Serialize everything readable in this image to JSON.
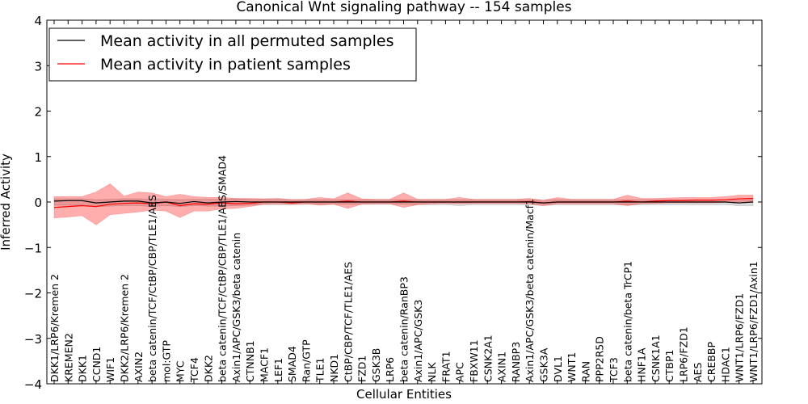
{
  "chart_data": {
    "type": "line",
    "title": "Canonical Wnt signaling pathway -- 154 samples",
    "xlabel": "Cellular Entities",
    "ylabel": "Inferred Activity",
    "ylim": [
      -4,
      4
    ],
    "yticks": [
      -4,
      -3,
      -2,
      -1,
      0,
      1,
      2,
      3,
      4
    ],
    "ytick_labels": [
      "−4",
      "−3",
      "−2",
      "−1",
      "0",
      "1",
      "2",
      "3",
      "4"
    ],
    "legend_position": "top-left",
    "categories": [
      "DKK1/LRP6/Kremen 2",
      "KREMEN2",
      "DKK1",
      "CCND1",
      "WIF1",
      "DKK2/LRP6/Kremen 2",
      "AXIN2",
      "beta catenin/TCF/CtBP/CBP/TLE1/AES",
      "mol:GTP",
      "MYC",
      "TCF4",
      "DKK2",
      "beta catenin/TCF/CtBP/CBP/TLE1/AES/SMAD4",
      "Axin1/APC/GSK3/beta catenin",
      "CTNNB1",
      "MACF1",
      "LEF1",
      "SMAD4",
      "Ran/GTP",
      "TLE1",
      "NKD1",
      "CtBP/CBP/TCF/TLE1/AES",
      "FZD1",
      "GSK3B",
      "LRP6",
      "beta catenin/RanBP3",
      "Axin1/APC/GSK3",
      "NLK",
      "FRAT1",
      "APC",
      "FBXW11",
      "CSNK2A1",
      "AXIN1",
      "RANBP3",
      "Axin1/APC/GSK3/beta catenin/Macf1",
      "GSK3A",
      "DVL1",
      "WNT1",
      "RAN",
      "PPP2R5D",
      "TCF3",
      "beta catenin/beta TrCP1",
      "HNF1A",
      "CSNK1A1",
      "CTBP1",
      "LRP6/FZD1",
      "AES",
      "CREBBP",
      "HDAC1",
      "WNT1/LRP6/FZD1",
      "WNT1/LRP6/FZD1/Axin1"
    ],
    "series": [
      {
        "name": "Mean activity in all permuted samples",
        "color": "#000000",
        "values": [
          0.02,
          0.03,
          0.03,
          -0.02,
          0.0,
          0.02,
          0.02,
          -0.02,
          0.0,
          -0.03,
          0.01,
          -0.02,
          0.0,
          0.01,
          0.0,
          0.0,
          0.0,
          0.0,
          0.0,
          0.0,
          0.0,
          0.0,
          0.0,
          0.0,
          0.0,
          0.0,
          0.0,
          0.0,
          0.0,
          0.0,
          0.0,
          0.0,
          0.0,
          0.0,
          0.0,
          -0.02,
          0.0,
          0.0,
          0.0,
          0.0,
          0.0,
          0.0,
          0.0,
          0.0,
          0.0,
          0.0,
          0.0,
          0.0,
          0.0,
          -0.02,
          0.0
        ],
        "band_lower": [
          -0.07,
          -0.07,
          -0.07,
          -0.1,
          -0.09,
          -0.08,
          -0.08,
          -0.1,
          -0.08,
          -0.1,
          -0.08,
          -0.09,
          -0.09,
          -0.08,
          -0.07,
          -0.06,
          -0.06,
          -0.06,
          -0.05,
          -0.05,
          -0.05,
          -0.05,
          -0.05,
          -0.05,
          -0.05,
          -0.05,
          -0.06,
          -0.06,
          -0.06,
          -0.08,
          -0.06,
          -0.06,
          -0.06,
          -0.06,
          -0.06,
          -0.08,
          -0.06,
          -0.06,
          -0.06,
          -0.06,
          -0.06,
          -0.07,
          -0.06,
          -0.06,
          -0.06,
          -0.06,
          -0.06,
          -0.06,
          -0.06,
          -0.08,
          -0.08
        ],
        "band_upper": [
          0.07,
          0.07,
          0.07,
          0.05,
          0.06,
          0.07,
          0.07,
          0.06,
          0.06,
          0.05,
          0.06,
          0.06,
          0.06,
          0.07,
          0.06,
          0.06,
          0.06,
          0.06,
          0.05,
          0.05,
          0.05,
          0.05,
          0.05,
          0.05,
          0.05,
          0.05,
          0.05,
          0.05,
          0.05,
          0.05,
          0.05,
          0.05,
          0.05,
          0.05,
          0.05,
          0.04,
          0.05,
          0.05,
          0.05,
          0.05,
          0.05,
          0.05,
          0.05,
          0.05,
          0.05,
          0.05,
          0.05,
          0.05,
          0.05,
          0.04,
          0.05
        ]
      },
      {
        "name": "Mean activity in patient samples",
        "color": "#ff0000",
        "values": [
          -0.12,
          -0.1,
          -0.08,
          -0.1,
          -0.05,
          -0.03,
          -0.02,
          -0.04,
          0.0,
          -0.08,
          -0.04,
          -0.05,
          -0.02,
          -0.04,
          -0.03,
          0.0,
          0.0,
          -0.02,
          0.0,
          0.0,
          0.0,
          0.02,
          0.0,
          0.0,
          0.0,
          0.02,
          0.0,
          0.0,
          0.0,
          0.0,
          0.0,
          0.0,
          0.0,
          0.0,
          0.01,
          -0.02,
          0.0,
          0.0,
          0.0,
          0.0,
          0.0,
          0.02,
          0.0,
          0.02,
          0.03,
          0.03,
          0.04,
          0.04,
          0.05,
          0.07,
          0.08
        ],
        "band_lower": [
          -0.35,
          -0.33,
          -0.3,
          -0.5,
          -0.28,
          -0.25,
          -0.22,
          -0.18,
          -0.2,
          -0.34,
          -0.2,
          -0.2,
          -0.15,
          -0.14,
          -0.1,
          -0.05,
          -0.04,
          -0.05,
          -0.04,
          -0.07,
          -0.05,
          -0.14,
          -0.05,
          -0.04,
          -0.04,
          -0.12,
          -0.06,
          -0.04,
          -0.03,
          -0.04,
          -0.03,
          -0.03,
          -0.03,
          -0.03,
          -0.04,
          -0.08,
          -0.04,
          -0.04,
          -0.04,
          -0.04,
          -0.04,
          -0.08,
          -0.04,
          -0.03,
          -0.02,
          -0.02,
          -0.02,
          -0.02,
          -0.01,
          0.0,
          0.0
        ],
        "band_upper": [
          0.12,
          0.12,
          0.12,
          0.22,
          0.4,
          0.13,
          0.22,
          0.2,
          0.12,
          0.17,
          0.12,
          0.1,
          0.1,
          0.08,
          0.08,
          0.07,
          0.08,
          0.05,
          0.06,
          0.1,
          0.07,
          0.2,
          0.07,
          0.06,
          0.06,
          0.2,
          0.06,
          0.06,
          0.06,
          0.1,
          0.06,
          0.06,
          0.06,
          0.06,
          0.08,
          0.04,
          0.1,
          0.06,
          0.06,
          0.06,
          0.06,
          0.15,
          0.08,
          0.08,
          0.09,
          0.1,
          0.1,
          0.1,
          0.12,
          0.15,
          0.15
        ]
      }
    ]
  }
}
